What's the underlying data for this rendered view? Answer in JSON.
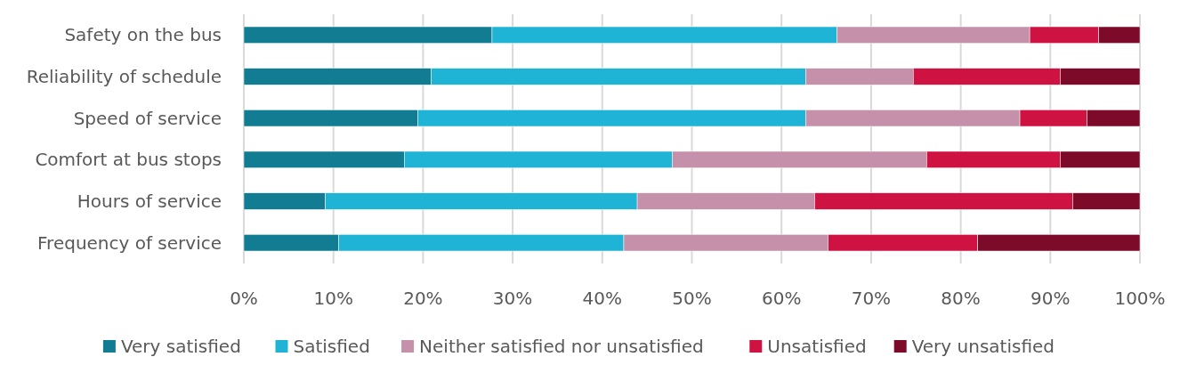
{
  "chart_data": {
    "type": "bar",
    "orientation": "horizontal",
    "stacked": true,
    "categories": [
      "Safety on the bus",
      "Reliability of schedule",
      "Speed of service",
      "Comfort at bus stops",
      "Hours of service",
      "Frequency of service"
    ],
    "series": [
      {
        "name": "Very satisfied",
        "color": "#127c93",
        "values": [
          27.7,
          20.9,
          19.4,
          17.9,
          9.1,
          10.6
        ]
      },
      {
        "name": "Satisfied",
        "color": "#1fb3d5",
        "values": [
          38.5,
          41.8,
          43.3,
          29.9,
          34.8,
          31.8
        ]
      },
      {
        "name": "Neither satisfied nor unsatisfied",
        "color": "#c590aa",
        "values": [
          21.5,
          12.0,
          23.9,
          28.4,
          19.8,
          22.8
        ]
      },
      {
        "name": "Unsatisfied",
        "color": "#ce1241",
        "values": [
          7.7,
          16.4,
          7.5,
          14.9,
          28.8,
          16.7
        ]
      },
      {
        "name": "Very unsatisfied",
        "color": "#7d0a28",
        "values": [
          4.6,
          8.9,
          5.9,
          8.9,
          7.5,
          18.1
        ]
      }
    ],
    "xlim": [
      0,
      100
    ],
    "xticks": [
      {
        "value": 0,
        "label": "0%"
      },
      {
        "value": 10,
        "label": "10%"
      },
      {
        "value": 20,
        "label": "20%"
      },
      {
        "value": 30,
        "label": "30%"
      },
      {
        "value": 40,
        "label": "40%"
      },
      {
        "value": 50,
        "label": "50%"
      },
      {
        "value": 60,
        "label": "60%"
      },
      {
        "value": 70,
        "label": "70%"
      },
      {
        "value": 80,
        "label": "80%"
      },
      {
        "value": 90,
        "label": "90%"
      },
      {
        "value": 100,
        "label": "100%"
      }
    ],
    "grid": "x",
    "legend": "bottom"
  }
}
